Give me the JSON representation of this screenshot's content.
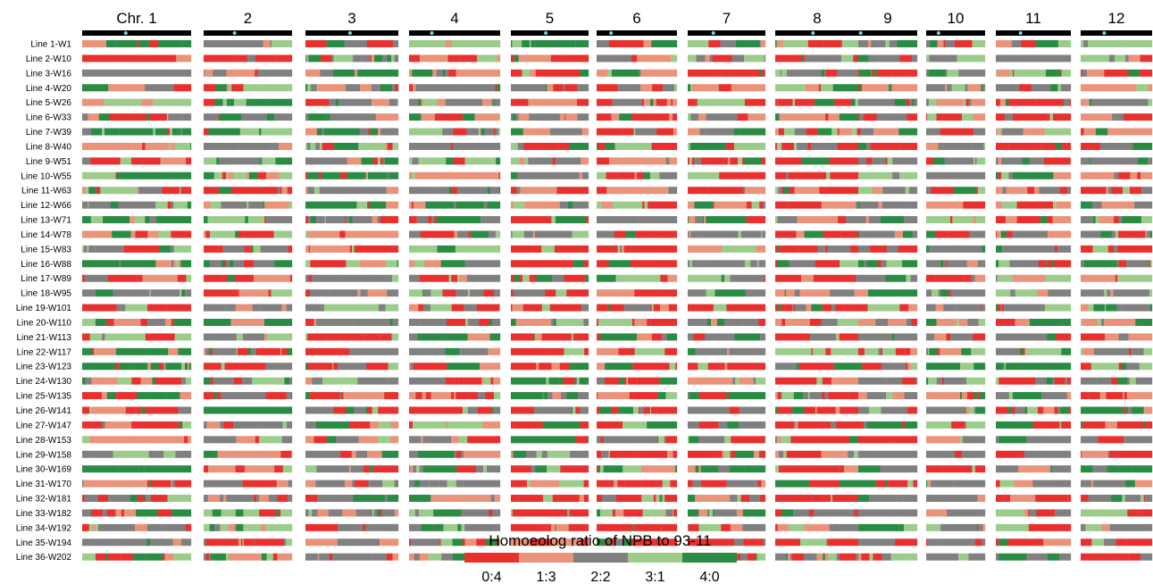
{
  "chart_data": {
    "type": "heatmap",
    "chromosomes": [
      "Chr. 1",
      "2",
      "3",
      "4",
      "5",
      "6",
      "7",
      "8",
      "9",
      "10",
      "11",
      "12"
    ],
    "centromere_position": [
      0.4,
      0.35,
      0.48,
      0.25,
      0.45,
      0.18,
      0.33,
      0.45,
      0.04,
      0.21,
      0.33,
      0.33
    ],
    "lines": [
      "Line 1-W1",
      "Line 2-W10",
      "Line 3-W16",
      "Line 4-W20",
      "Line 5-W26",
      "Line 6-W33",
      "Line 7-W39",
      "Line 8-W40",
      "Line 9-W51",
      "Line 10-W55",
      "Line 11-W63",
      "Line 12-W66",
      "Line 13-W71",
      "Line 14-W78",
      "Line 15-W83",
      "Line 16-W88",
      "Line 17-W89",
      "Line 18-W95",
      "Line 19-W101",
      "Line 20-W110",
      "Line 21-W113",
      "Line 22-W117",
      "Line 23-W123",
      "Line 24-W130",
      "Line 25-W135",
      "Line 26-W141",
      "Line 27-W147",
      "Line 28-W153",
      "Line 29-W158",
      "Line 30-W169",
      "Line 31-W170",
      "Line 32-W181",
      "Line 33-W182",
      "Line 34-W192",
      "Line 35-W194",
      "Line 36-W202"
    ],
    "categories": [
      "0:4",
      "1:3",
      "2:2",
      "3:1",
      "4:0"
    ],
    "colors": [
      "#e8312f",
      "#e8937a",
      "#808080",
      "#9ccc8c",
      "#2a8b45"
    ],
    "legend_title": "Homoeolog ratio of NPB to 93-11",
    "dominant_category": [
      [
        4,
        2,
        2,
        3,
        4,
        0,
        2,
        0,
        2,
        2,
        4,
        3
      ],
      [
        0,
        0,
        2,
        3,
        0,
        2,
        2,
        0,
        2,
        1,
        2,
        0
      ],
      [
        2,
        1,
        4,
        1,
        0,
        1,
        0,
        2,
        0,
        2,
        3,
        0
      ],
      [
        2,
        3,
        2,
        2,
        2,
        0,
        1,
        0,
        4,
        2,
        2,
        1
      ],
      [
        3,
        4,
        2,
        2,
        0,
        0,
        0,
        0,
        2,
        2,
        0,
        2
      ],
      [
        2,
        2,
        2,
        4,
        2,
        0,
        2,
        1,
        0,
        3,
        0,
        0
      ],
      [
        4,
        4,
        2,
        3,
        1,
        0,
        2,
        0,
        1,
        2,
        1,
        1
      ],
      [
        1,
        2,
        3,
        2,
        0,
        0,
        4,
        0,
        0,
        2,
        0,
        2
      ],
      [
        0,
        2,
        2,
        3,
        2,
        0,
        0,
        0,
        2,
        3,
        2,
        2
      ],
      [
        4,
        3,
        4,
        1,
        2,
        0,
        2,
        0,
        3,
        2,
        4,
        1
      ],
      [
        0,
        0,
        2,
        2,
        0,
        1,
        0,
        0,
        2,
        0,
        0,
        0
      ],
      [
        2,
        1,
        4,
        4,
        1,
        0,
        0,
        0,
        2,
        1,
        0,
        2
      ],
      [
        4,
        3,
        2,
        2,
        0,
        2,
        4,
        0,
        2,
        3,
        0,
        1
      ],
      [
        1,
        0,
        1,
        2,
        2,
        0,
        2,
        0,
        4,
        0,
        1,
        4
      ],
      [
        2,
        0,
        0,
        3,
        0,
        0,
        1,
        0,
        0,
        2,
        2,
        0
      ],
      [
        4,
        2,
        3,
        4,
        0,
        0,
        2,
        0,
        4,
        2,
        0,
        2
      ],
      [
        0,
        0,
        2,
        4,
        0,
        0,
        3,
        0,
        4,
        0,
        3,
        0
      ],
      [
        2,
        1,
        2,
        2,
        0,
        0,
        2,
        1,
        4,
        2,
        2,
        2
      ],
      [
        0,
        2,
        3,
        2,
        0,
        0,
        0,
        0,
        0,
        2,
        2,
        4
      ],
      [
        0,
        4,
        2,
        2,
        0,
        0,
        2,
        0,
        2,
        3,
        0,
        2
      ],
      [
        3,
        2,
        0,
        4,
        0,
        0,
        2,
        0,
        2,
        2,
        2,
        1
      ],
      [
        4,
        0,
        2,
        2,
        0,
        0,
        2,
        0,
        0,
        3,
        2,
        2
      ],
      [
        4,
        0,
        0,
        4,
        0,
        0,
        0,
        0,
        2,
        3,
        4,
        3
      ],
      [
        2,
        2,
        2,
        0,
        4,
        0,
        1,
        0,
        2,
        2,
        0,
        2
      ],
      [
        4,
        0,
        0,
        0,
        2,
        0,
        4,
        0,
        1,
        4,
        2,
        0
      ],
      [
        0,
        4,
        0,
        2,
        0,
        0,
        2,
        0,
        2,
        2,
        0,
        4
      ],
      [
        0,
        2,
        0,
        3,
        0,
        0,
        2,
        0,
        0,
        3,
        0,
        0
      ],
      [
        1,
        2,
        1,
        2,
        4,
        0,
        2,
        0,
        0,
        2,
        2,
        2
      ],
      [
        2,
        1,
        2,
        2,
        2,
        0,
        0,
        1,
        2,
        2,
        2,
        0
      ],
      [
        4,
        0,
        2,
        2,
        0,
        0,
        4,
        0,
        2,
        0,
        2,
        4
      ],
      [
        1,
        2,
        2,
        2,
        0,
        0,
        2,
        0,
        0,
        2,
        2,
        2
      ],
      [
        0,
        2,
        4,
        1,
        0,
        0,
        2,
        0,
        2,
        2,
        0,
        2
      ],
      [
        0,
        3,
        2,
        2,
        0,
        0,
        4,
        0,
        2,
        2,
        0,
        0
      ],
      [
        2,
        3,
        2,
        4,
        0,
        0,
        0,
        1,
        4,
        2,
        0,
        2
      ],
      [
        2,
        0,
        2,
        0,
        1,
        0,
        0,
        2,
        2,
        2,
        0,
        0
      ],
      [
        0,
        1,
        2,
        2,
        3,
        0,
        0,
        2,
        3,
        2,
        2,
        0
      ]
    ]
  }
}
